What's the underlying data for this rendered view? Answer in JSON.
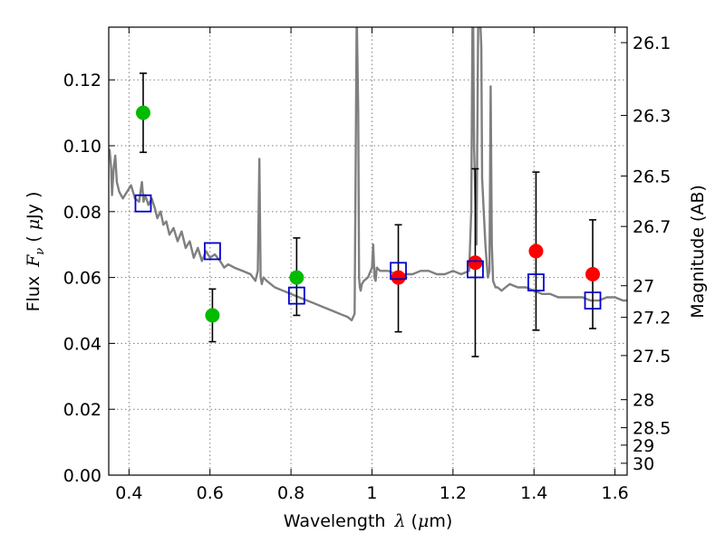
{
  "chart_data": {
    "type": "scatter",
    "xlabel_text": "Wavelength",
    "xlabel_symbol": "λ",
    "xlabel_unit_open": " (",
    "xlabel_unit_mu": "μ",
    "xlabel_unit_rest": "m)",
    "ylabel_text": "Flux",
    "ylabel_symbol": "F",
    "ylabel_sub": "ν",
    "ylabel_unit_open": " ( ",
    "ylabel_unit_mu": "μ",
    "ylabel_unit_rest": "Jy )",
    "y2label": "Magnitude (AB)",
    "xlim": [
      0.35,
      1.63
    ],
    "ylim": [
      0.0,
      0.136
    ],
    "grid": true,
    "x_ticks": [
      {
        "value": 0.4,
        "label": "0.4"
      },
      {
        "value": 0.6,
        "label": "0.6"
      },
      {
        "value": 0.8,
        "label": "0.8"
      },
      {
        "value": 1.0,
        "label": "1"
      },
      {
        "value": 1.2,
        "label": "1.2"
      },
      {
        "value": 1.4,
        "label": "1.4"
      },
      {
        "value": 1.6,
        "label": "1.6"
      }
    ],
    "y_ticks": [
      {
        "value": 0.0,
        "label": "0.00"
      },
      {
        "value": 0.02,
        "label": "0.02"
      },
      {
        "value": 0.04,
        "label": "0.04"
      },
      {
        "value": 0.06,
        "label": "0.06"
      },
      {
        "value": 0.08,
        "label": "0.08"
      },
      {
        "value": 0.1,
        "label": "0.10"
      },
      {
        "value": 0.12,
        "label": "0.12"
      }
    ],
    "y2_ticks": [
      {
        "flux": 0.1313,
        "label": "26.1"
      },
      {
        "flux": 0.1092,
        "label": "26.3"
      },
      {
        "flux": 0.0908,
        "label": "26.5"
      },
      {
        "flux": 0.0755,
        "label": "26.7"
      },
      {
        "flux": 0.0575,
        "label": "27"
      },
      {
        "flux": 0.0479,
        "label": "27.2"
      },
      {
        "flux": 0.0363,
        "label": "27.5"
      },
      {
        "flux": 0.0229,
        "label": "28"
      },
      {
        "flux": 0.0144,
        "label": "28.5"
      },
      {
        "flux": 0.0091,
        "label": "29"
      },
      {
        "flux": 0.0036,
        "label": "30"
      }
    ],
    "colors": {
      "spectrum": "#7f7f7f",
      "green_points": "#00bb00",
      "red_points": "#ff0000",
      "model_squares": "#0000cc",
      "error_bars": "#000000",
      "grid": "#808080"
    },
    "model_spectrum": {
      "x": [
        0.352,
        0.356,
        0.358,
        0.362,
        0.366,
        0.37,
        0.376,
        0.385,
        0.395,
        0.405,
        0.415,
        0.425,
        0.432,
        0.436,
        0.44,
        0.448,
        0.456,
        0.464,
        0.47,
        0.478,
        0.485,
        0.492,
        0.5,
        0.51,
        0.52,
        0.53,
        0.54,
        0.55,
        0.56,
        0.57,
        0.58,
        0.59,
        0.6,
        0.612,
        0.625,
        0.635,
        0.645,
        0.66,
        0.68,
        0.7,
        0.712,
        0.718,
        0.722,
        0.725,
        0.728,
        0.732,
        0.74,
        0.76,
        0.78,
        0.8,
        0.82,
        0.84,
        0.86,
        0.88,
        0.9,
        0.92,
        0.94,
        0.95,
        0.957,
        0.96,
        0.962,
        0.963,
        0.966,
        0.968,
        0.97,
        0.972,
        0.975,
        0.98,
        0.99,
        1.0,
        1.003,
        1.006,
        1.009,
        1.012,
        1.02,
        1.04,
        1.06,
        1.08,
        1.1,
        1.12,
        1.14,
        1.16,
        1.18,
        1.2,
        1.22,
        1.24,
        1.245,
        1.248,
        1.25,
        1.252,
        1.258,
        1.262,
        1.268,
        1.27,
        1.272,
        1.28,
        1.286,
        1.29,
        1.293,
        1.296,
        1.299,
        1.302,
        1.305,
        1.31,
        1.32,
        1.33,
        1.34,
        1.36,
        1.38,
        1.4,
        1.42,
        1.44,
        1.46,
        1.48,
        1.5,
        1.52,
        1.54,
        1.56,
        1.58,
        1.6,
        1.62,
        1.63
      ],
      "y": [
        0.099,
        0.093,
        0.085,
        0.093,
        0.097,
        0.089,
        0.086,
        0.084,
        0.086,
        0.088,
        0.084,
        0.083,
        0.089,
        0.083,
        0.085,
        0.082,
        0.084,
        0.081,
        0.078,
        0.08,
        0.076,
        0.077,
        0.073,
        0.075,
        0.071,
        0.074,
        0.069,
        0.071,
        0.066,
        0.069,
        0.065,
        0.068,
        0.066,
        0.067,
        0.065,
        0.063,
        0.064,
        0.063,
        0.062,
        0.061,
        0.059,
        0.062,
        0.096,
        0.06,
        0.058,
        0.06,
        0.059,
        0.057,
        0.056,
        0.055,
        0.054,
        0.053,
        0.052,
        0.051,
        0.05,
        0.049,
        0.048,
        0.047,
        0.049,
        0.1,
        0.136,
        0.136,
        0.11,
        0.06,
        0.057,
        0.056,
        0.058,
        0.059,
        0.06,
        0.063,
        0.07,
        0.06,
        0.059,
        0.063,
        0.062,
        0.062,
        0.061,
        0.061,
        0.061,
        0.062,
        0.062,
        0.061,
        0.061,
        0.062,
        0.061,
        0.062,
        0.08,
        0.136,
        0.136,
        0.1,
        0.07,
        0.136,
        0.136,
        0.13,
        0.09,
        0.07,
        0.06,
        0.062,
        0.118,
        0.07,
        0.059,
        0.058,
        0.057,
        0.057,
        0.056,
        0.057,
        0.058,
        0.057,
        0.057,
        0.056,
        0.055,
        0.055,
        0.054,
        0.054,
        0.054,
        0.054,
        0.053,
        0.053,
        0.054,
        0.054,
        0.053,
        0.053
      ]
    },
    "series": [
      {
        "marker": "circle",
        "color": "#00bb00",
        "points": [
          {
            "x": 0.435,
            "y": 0.11,
            "err_lo": 0.098,
            "err_hi": 0.122
          },
          {
            "x": 0.606,
            "y": 0.0485,
            "err_lo": 0.0405,
            "err_hi": 0.0565
          },
          {
            "x": 0.814,
            "y": 0.06,
            "err_lo": 0.0485,
            "err_hi": 0.072
          }
        ]
      },
      {
        "marker": "circle",
        "color": "#ff0000",
        "points": [
          {
            "x": 1.065,
            "y": 0.06,
            "err_lo": 0.0435,
            "err_hi": 0.076
          },
          {
            "x": 1.255,
            "y": 0.0645,
            "err_lo": 0.036,
            "err_hi": 0.093
          },
          {
            "x": 1.405,
            "y": 0.068,
            "err_lo": 0.044,
            "err_hi": 0.092
          },
          {
            "x": 1.545,
            "y": 0.061,
            "err_lo": 0.0445,
            "err_hi": 0.0775
          }
        ]
      },
      {
        "marker": "open-square",
        "color": "#0000cc",
        "points": [
          {
            "x": 0.435,
            "y": 0.0825
          },
          {
            "x": 0.606,
            "y": 0.068
          },
          {
            "x": 0.814,
            "y": 0.0545
          },
          {
            "x": 1.065,
            "y": 0.062
          },
          {
            "x": 1.255,
            "y": 0.0625
          },
          {
            "x": 1.405,
            "y": 0.0585
          },
          {
            "x": 1.545,
            "y": 0.053
          }
        ]
      }
    ]
  }
}
